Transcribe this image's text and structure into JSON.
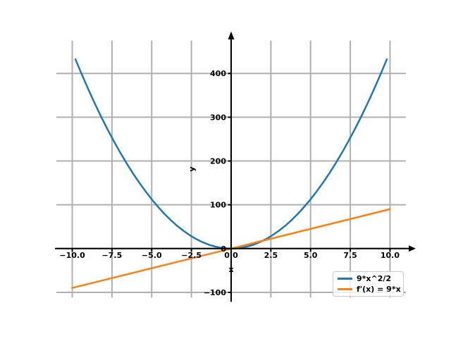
{
  "figure": {
    "background": "#ffffff"
  },
  "chart_data": {
    "type": "line",
    "title": "",
    "xlabel": "x",
    "ylabel": "y",
    "xlim": [
      -11,
      11
    ],
    "ylim": [
      -112,
      475
    ],
    "grid": true,
    "colors": {
      "grid": "#b0b0b0",
      "axis": "#000000",
      "tick_label": "#000000"
    },
    "x_ticks": [
      {
        "value": -10,
        "label": "−10.0"
      },
      {
        "value": -7.5,
        "label": "−7.5"
      },
      {
        "value": -5,
        "label": "−5.0"
      },
      {
        "value": -2.5,
        "label": "−2.5"
      },
      {
        "value": 0,
        "label": "0.0"
      },
      {
        "value": 2.5,
        "label": "2.5"
      },
      {
        "value": 5,
        "label": "5.0"
      },
      {
        "value": 7.5,
        "label": "7.5"
      },
      {
        "value": 10,
        "label": "10.0"
      }
    ],
    "y_ticks": [
      {
        "value": -100,
        "label": "−100"
      },
      {
        "value": 0,
        "label": "0"
      },
      {
        "value": 100,
        "label": "100"
      },
      {
        "value": 200,
        "label": "200"
      },
      {
        "value": 300,
        "label": "300"
      },
      {
        "value": 400,
        "label": "400"
      }
    ],
    "legend": {
      "location": "lower right"
    },
    "series": [
      {
        "name": "9*x^2/2",
        "color": "#1f77b4",
        "linewidth": 2.5,
        "x": [
          -9.8,
          -9.4,
          -9.0,
          -8.6,
          -8.2,
          -7.8,
          -7.4,
          -7.0,
          -6.6,
          -6.2,
          -5.8,
          -5.4,
          -5.0,
          -4.6,
          -4.2,
          -3.8,
          -3.4,
          -3.0,
          -2.6,
          -2.2,
          -1.8,
          -1.4,
          -1.0,
          -0.6,
          -0.2,
          0.2,
          0.6,
          1.0,
          1.4,
          1.8,
          2.2,
          2.6,
          3.0,
          3.4,
          3.8,
          4.2,
          4.6,
          5.0,
          5.4,
          5.8,
          6.2,
          6.6,
          7.0,
          7.4,
          7.8,
          8.2,
          8.6,
          9.0,
          9.4,
          9.8
        ],
        "y": [
          432.18,
          397.62,
          364.5,
          332.82,
          302.58,
          273.78,
          246.42,
          220.5,
          196.02,
          172.98,
          151.38,
          131.22,
          112.5,
          95.22,
          79.38,
          64.98,
          52.02,
          40.5,
          30.42,
          21.78,
          14.58,
          8.82,
          4.5,
          1.62,
          0.18,
          0.18,
          1.62,
          4.5,
          8.82,
          14.58,
          21.78,
          30.42,
          40.5,
          52.02,
          64.98,
          79.38,
          95.22,
          112.5,
          131.22,
          151.38,
          172.98,
          196.02,
          220.5,
          246.42,
          273.78,
          302.58,
          332.82,
          364.5,
          397.62,
          432.18
        ]
      },
      {
        "name": "f'(x) = 9*x",
        "color": "#ff7f0e",
        "linewidth": 2.5,
        "x": [
          -10,
          0,
          10
        ],
        "y": [
          -90,
          0,
          90
        ]
      }
    ]
  }
}
